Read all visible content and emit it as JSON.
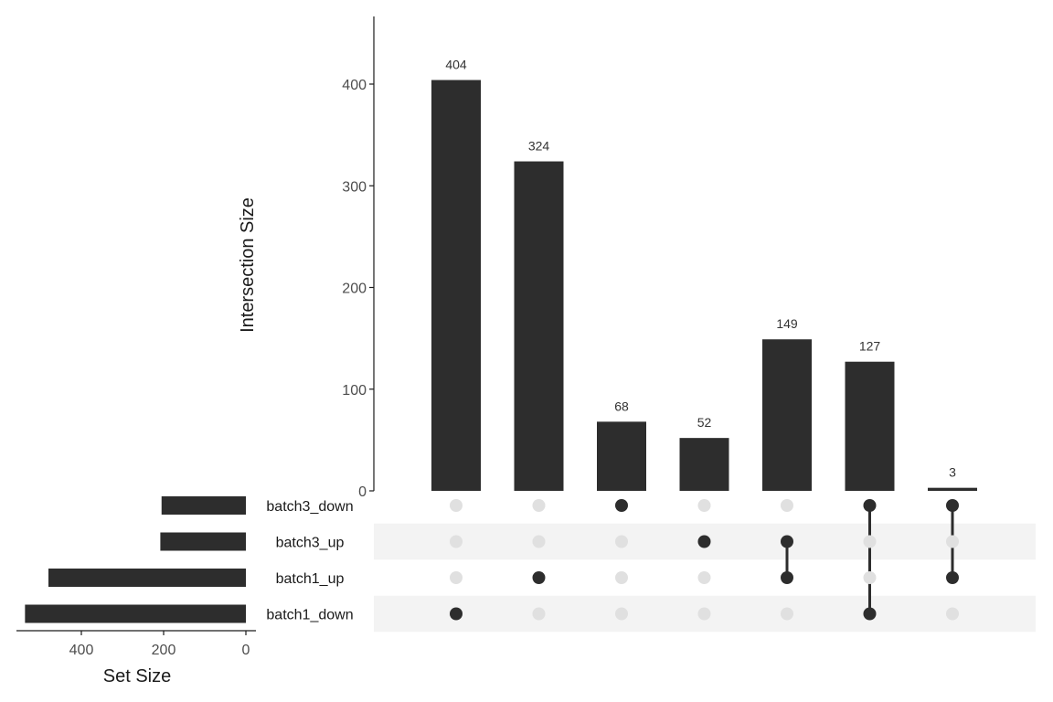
{
  "chart_data": {
    "type": "bar",
    "subtype": "upset",
    "ylabel": "Intersection Size",
    "set_size_label": "Set Size",
    "y_ticks": [
      0,
      100,
      200,
      300,
      400
    ],
    "ylim": [
      0,
      460
    ],
    "sets": [
      "batch3_down",
      "batch3_up",
      "batch1_up",
      "batch1_down"
    ],
    "set_sizes": [
      205,
      208,
      480,
      537
    ],
    "set_size_ticks": [
      400,
      200,
      0
    ],
    "set_size_lim": [
      0,
      560
    ],
    "intersections": [
      {
        "sets": [
          "batch1_down"
        ],
        "size": 404
      },
      {
        "sets": [
          "batch1_up"
        ],
        "size": 324
      },
      {
        "sets": [
          "batch3_down"
        ],
        "size": 68
      },
      {
        "sets": [
          "batch3_up"
        ],
        "size": 52
      },
      {
        "sets": [
          "batch3_up",
          "batch1_up"
        ],
        "size": 149
      },
      {
        "sets": [
          "batch3_down",
          "batch1_down"
        ],
        "size": 127
      },
      {
        "sets": [
          "batch3_down",
          "batch1_up"
        ],
        "size": 3
      }
    ],
    "colors": {
      "bar": "#2d2d2d",
      "dot_active": "#2d2d2d",
      "dot_inactive": "#e0e0e0",
      "stripe": "#f3f3f3"
    }
  }
}
